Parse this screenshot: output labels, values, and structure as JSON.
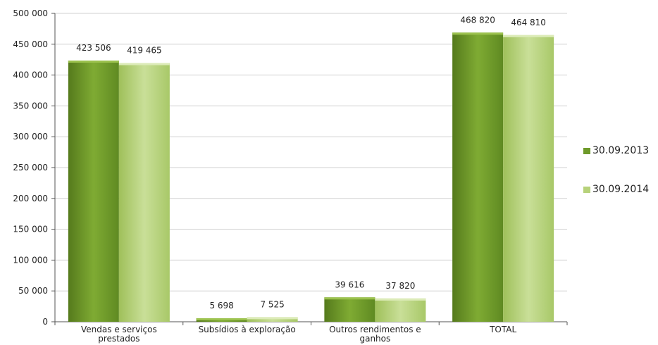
{
  "chart_data": {
    "type": "bar",
    "categories": [
      [
        "Vendas e serviços",
        "prestados"
      ],
      [
        "Subsídios à exploração"
      ],
      [
        "Outros rendimentos e",
        "ganhos"
      ],
      [
        "TOTAL"
      ]
    ],
    "series": [
      {
        "name": "30.09.2013",
        "values": [
          423506,
          5698,
          39616,
          468820
        ],
        "labels": [
          "423 506",
          "5 698",
          "39 616",
          "468 820"
        ],
        "color": "#6e9a2a"
      },
      {
        "name": "30.09.2014",
        "values": [
          419465,
          7525,
          37820,
          464810
        ],
        "labels": [
          "419 465",
          "7 525",
          "37 820",
          "464 810"
        ],
        "color": "#b7d27a"
      }
    ],
    "ylim": [
      0,
      500000
    ],
    "yticks": [
      {
        "value": 0,
        "label": "0"
      },
      {
        "value": 50000,
        "label": "50 000"
      },
      {
        "value": 100000,
        "label": "100 000"
      },
      {
        "value": 150000,
        "label": "150 000"
      },
      {
        "value": 200000,
        "label": "200 000"
      },
      {
        "value": 250000,
        "label": "250 000"
      },
      {
        "value": 300000,
        "label": "300 000"
      },
      {
        "value": 350000,
        "label": "350 000"
      },
      {
        "value": 400000,
        "label": "400 000"
      },
      {
        "value": 450000,
        "label": "450 000"
      },
      {
        "value": 500000,
        "label": "500 000"
      }
    ],
    "grid": true,
    "legend_position": "right"
  }
}
